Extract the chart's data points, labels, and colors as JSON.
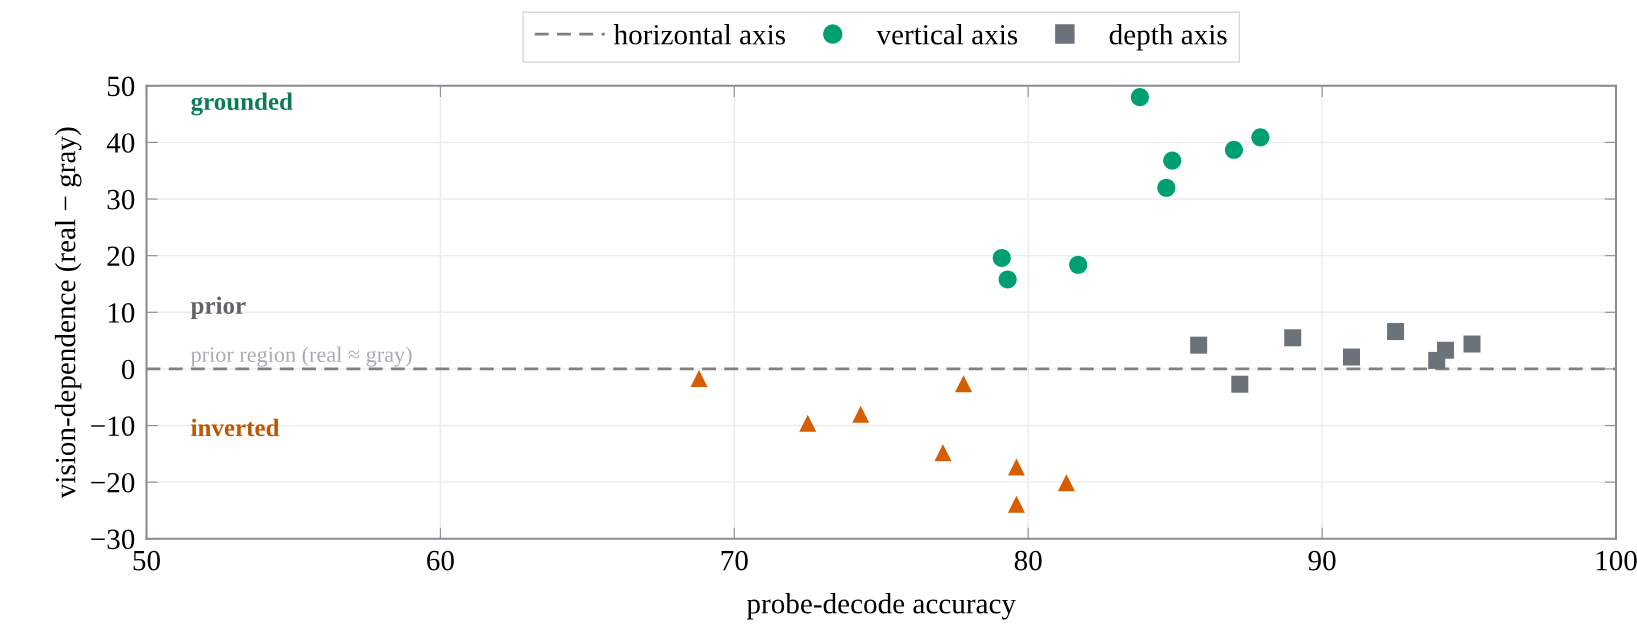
{
  "chart_data": {
    "type": "scatter",
    "xlabel": "probe-decode accuracy",
    "ylabel": "vision-dependence (real − gray)",
    "xlim": [
      50,
      100
    ],
    "xticks": [
      50,
      60,
      70,
      80,
      90,
      100
    ],
    "ylim": [
      -30,
      50
    ],
    "yticks": [
      -30,
      -20,
      -10,
      0,
      10,
      20,
      30,
      40,
      50
    ],
    "grid": true,
    "legend": "top",
    "ref_lines": [
      {
        "axis": "y",
        "value": 0,
        "label": "horizontal axis",
        "color": "#808080",
        "line_style": "dashed"
      }
    ],
    "annotations": [
      "grounded",
      "prior",
      "prior region (real ≈ gray)",
      "inverted"
    ],
    "series": [
      {
        "color": "#d55e00",
        "marker": "triangle",
        "x": [
          68.8,
          72.5,
          74.3,
          77.8,
          77.1,
          79.6,
          79.6,
          81.3
        ],
        "values": [
          -1.7,
          -9.6,
          -8.0,
          -2.6,
          -14.8,
          -17.3,
          -23.9,
          -20.1
        ]
      },
      {
        "name": "vertical axis",
        "color": "#009e73",
        "marker": "circle",
        "x": [
          83.8,
          84.9,
          84.7,
          87.0,
          87.9,
          79.1,
          79.3,
          81.7
        ],
        "values": [
          48.0,
          36.8,
          32.0,
          38.7,
          40.9,
          19.6,
          15.8,
          18.4
        ]
      },
      {
        "name": "depth axis",
        "color": "#6c727a",
        "marker": "square",
        "x": [
          85.8,
          87.2,
          89.0,
          91.0,
          92.5,
          93.9,
          94.2,
          95.1
        ],
        "values": [
          4.2,
          -2.7,
          5.5,
          2.1,
          6.6,
          1.5,
          3.3,
          4.4
        ]
      }
    ]
  }
}
